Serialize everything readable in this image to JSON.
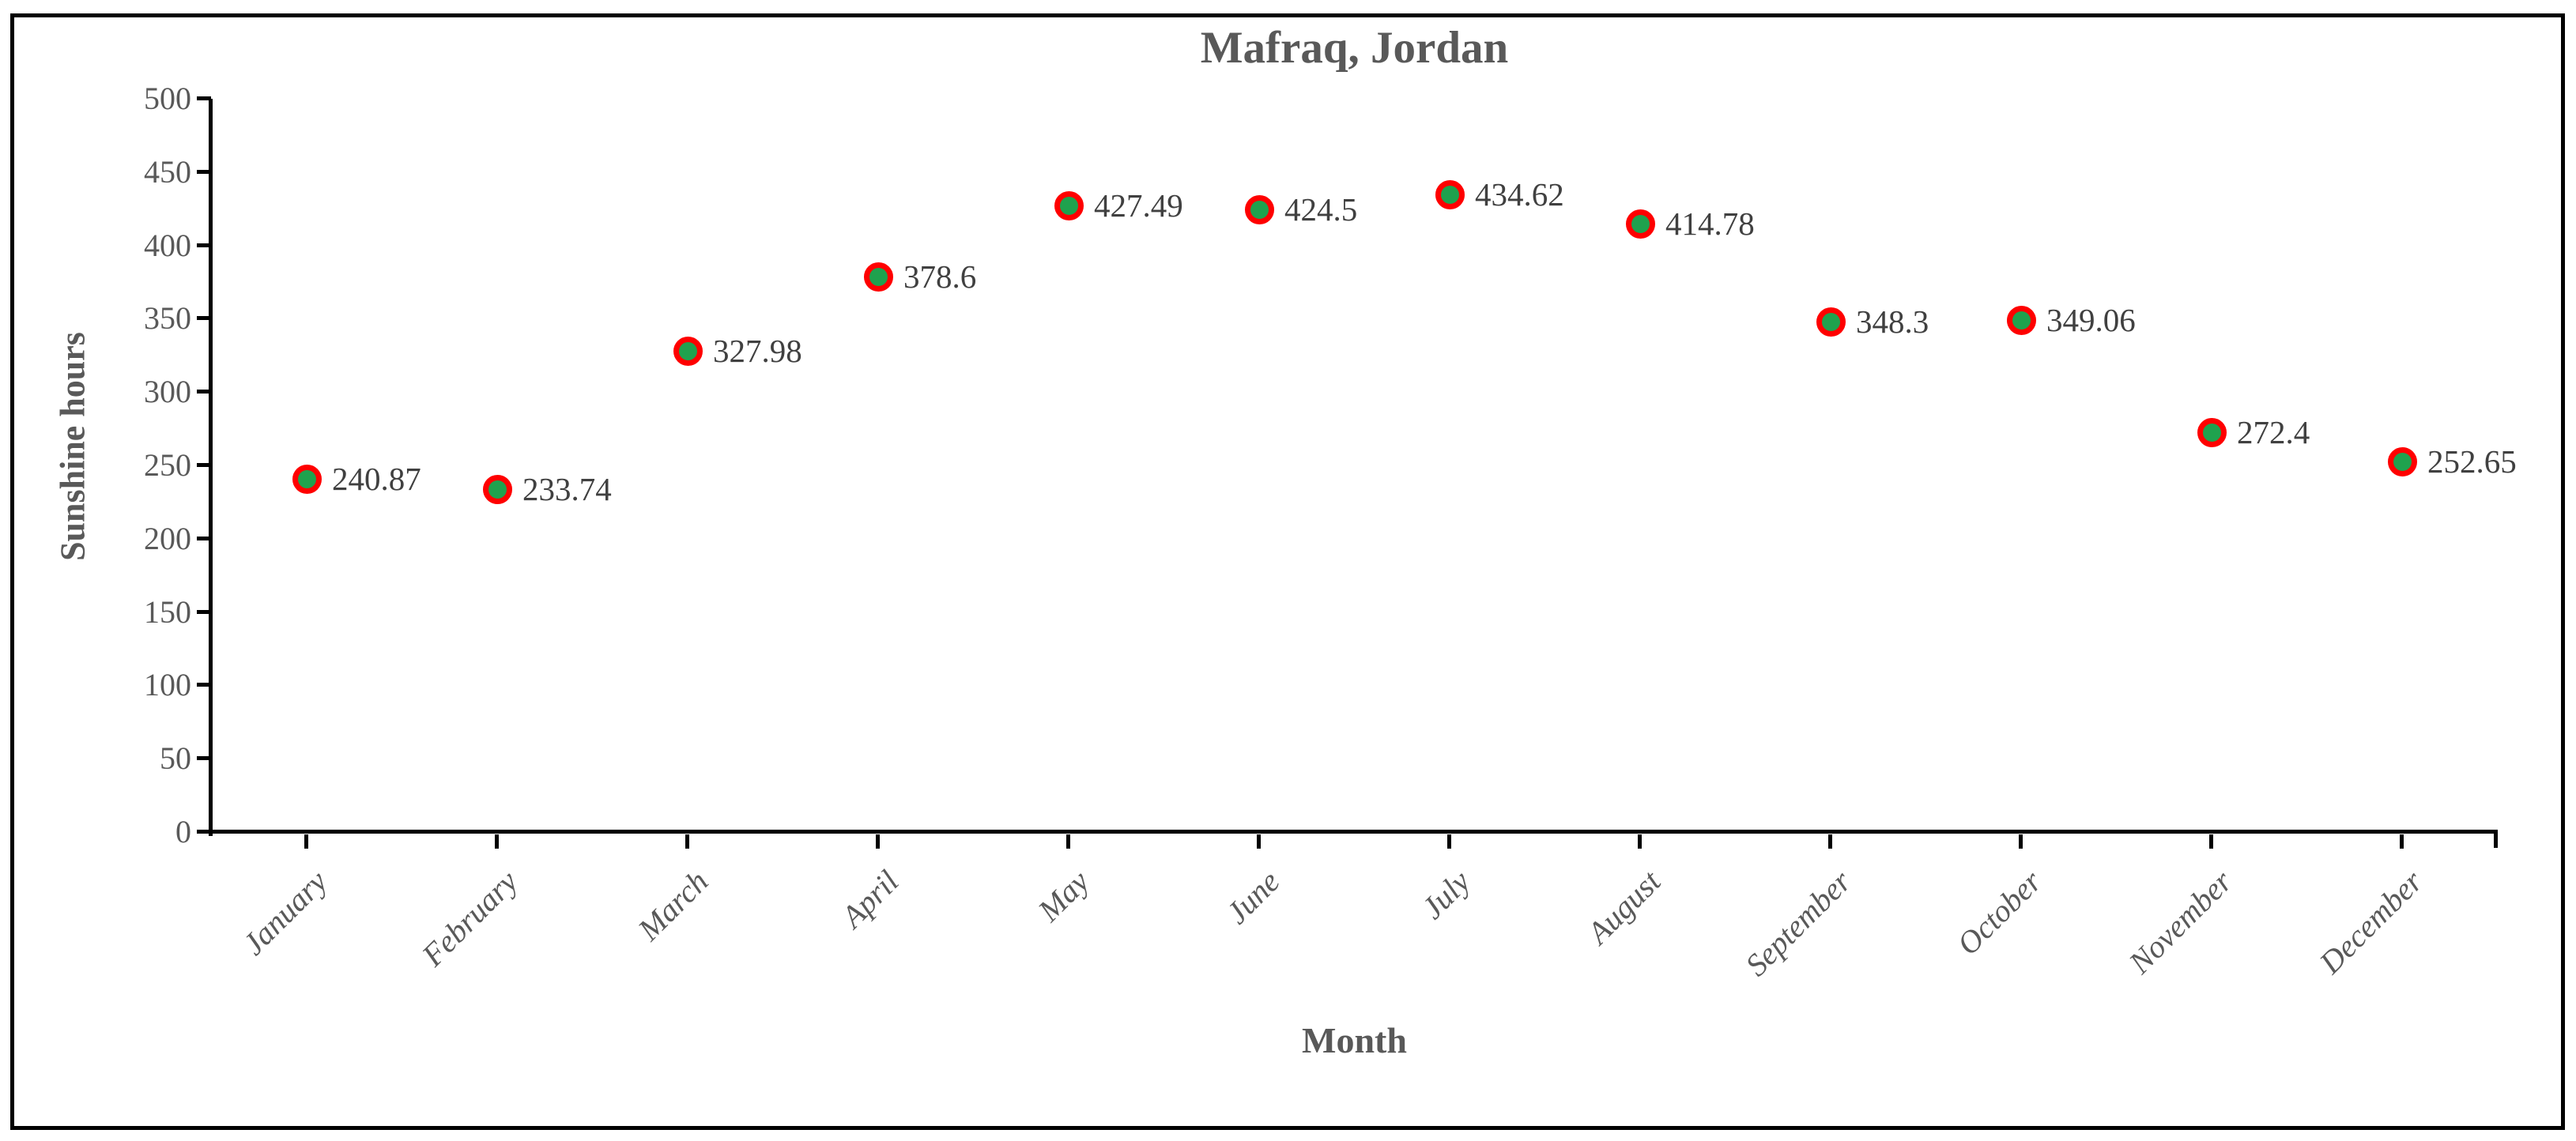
{
  "chart_data": {
    "type": "scatter",
    "title": "Mafraq, Jordan",
    "xlabel": "Month",
    "ylabel": "Sunshine hours",
    "categories": [
      "January",
      "February",
      "March",
      "April",
      "May",
      "June",
      "July",
      "August",
      "September",
      "October",
      "November",
      "December"
    ],
    "series": [
      {
        "name": "Sunshine hours",
        "values": [
          240.87,
          233.74,
          327.98,
          378.6,
          427.49,
          424.5,
          434.62,
          414.78,
          348.3,
          349.06,
          272.4,
          252.65
        ],
        "point_labels": [
          "240.87",
          "233.74",
          "327.98",
          "378.6",
          "427.49",
          "424.5",
          "434.62",
          "414.78",
          "348.3",
          "349.06",
          "272.4",
          "252.65"
        ]
      }
    ],
    "ylim": [
      0,
      500
    ],
    "yticks": [
      0,
      50,
      100,
      150,
      200,
      250,
      300,
      350,
      400,
      450,
      500
    ],
    "grid": "off",
    "legend": "none",
    "marker_fill_color": "#1fa24e",
    "marker_stroke_color": "#ff0000",
    "axis_color": "#000000",
    "text_color": "#595959",
    "point_label_color": "#404040"
  }
}
